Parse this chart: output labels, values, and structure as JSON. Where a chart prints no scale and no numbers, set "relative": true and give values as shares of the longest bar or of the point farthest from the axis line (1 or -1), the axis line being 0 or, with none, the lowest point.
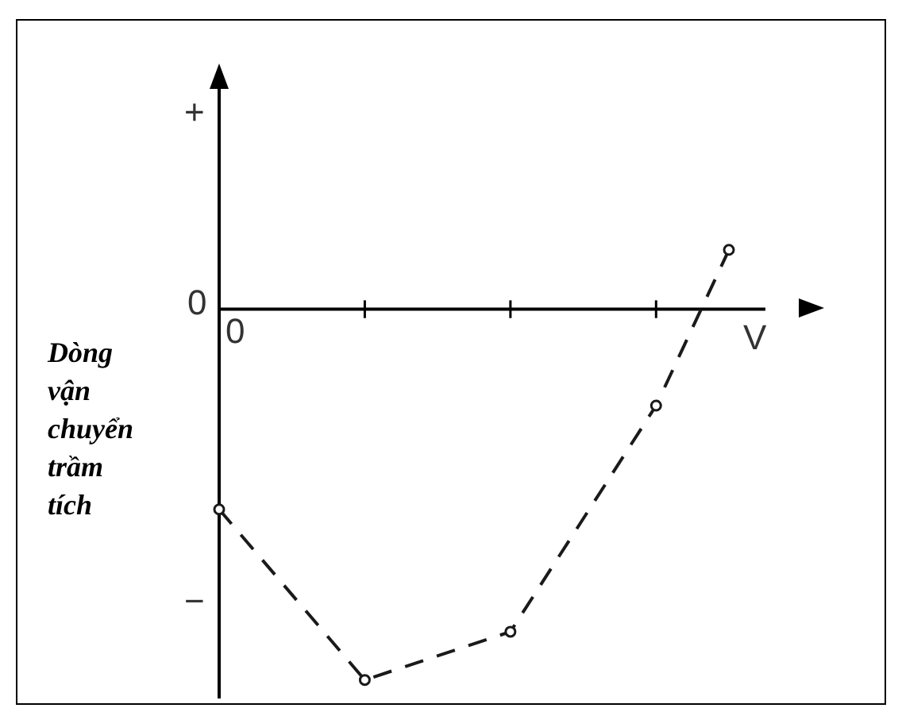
{
  "chart_data": {
    "type": "line",
    "relative": true,
    "ylabel": "Dòng vận chuyển trầm tích",
    "xlabel": "V",
    "categories": [
      null,
      null,
      null,
      null,
      null,
      null,
      null,
      null
    ],
    "series": [
      {
        "color": "#1a1a1a",
        "values": [
          -0.54,
          null,
          -1,
          null,
          -0.87,
          null,
          -0.26,
          0.16
        ]
      }
    ],
    "annotations": [
      "+",
      "0",
      "0",
      "−"
    ],
    "line_style": "dashed",
    "marker": "circle"
  }
}
